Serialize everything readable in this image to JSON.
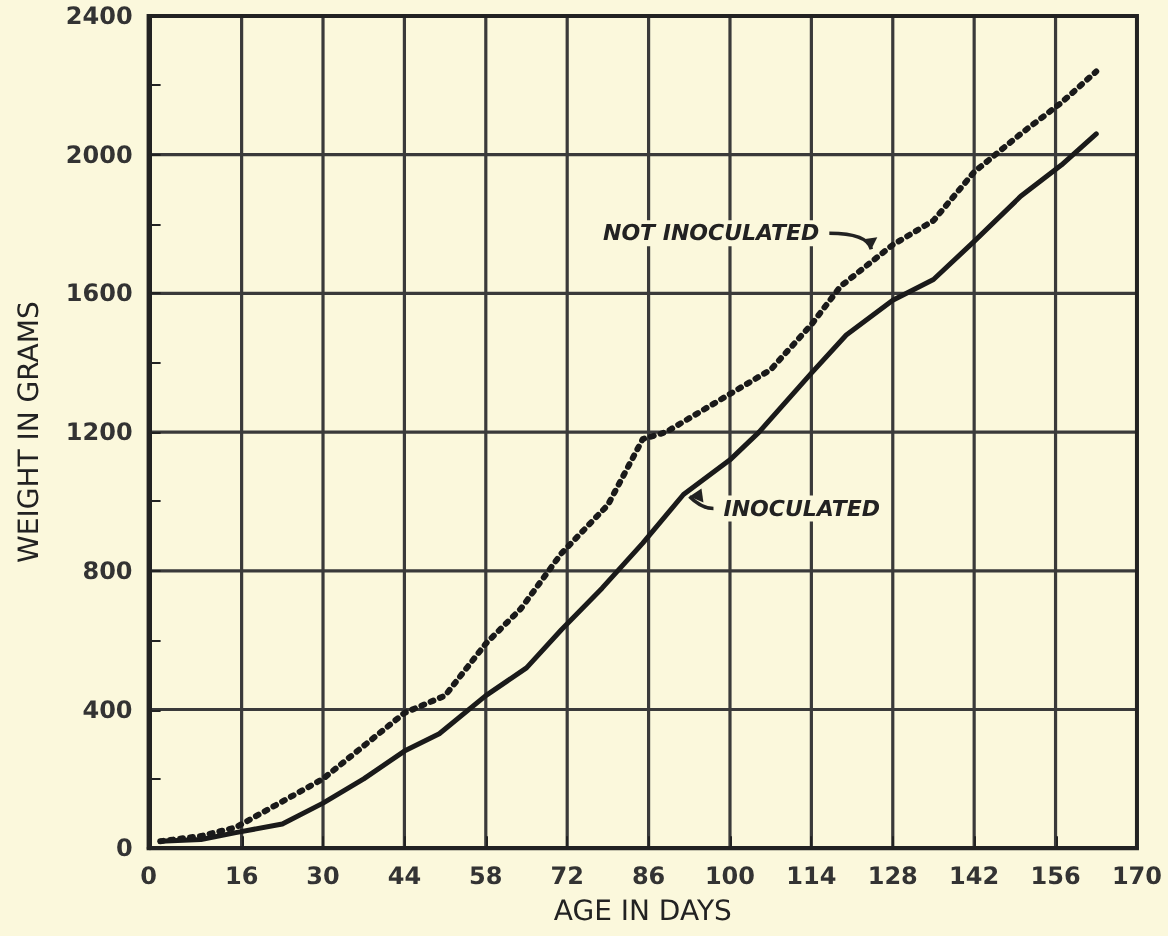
{
  "chart_data": {
    "type": "line",
    "xlabel": "AGE IN DAYS",
    "ylabel": "WEIGHT IN GRAMS",
    "xlim": [
      0,
      170
    ],
    "xticks": [
      0,
      16,
      30,
      44,
      58,
      72,
      86,
      100,
      114,
      128,
      142,
      156,
      170
    ],
    "ylim": [
      0,
      2400
    ],
    "yticks": [
      0,
      {
        "value": 200,
        "label": null
      },
      400,
      {
        "value": 600,
        "label": null
      },
      800,
      {
        "value": 1000,
        "label": null
      },
      1200,
      {
        "value": 1400,
        "label": null
      },
      1600,
      {
        "value": 1800,
        "label": null
      },
      2000,
      {
        "value": 2200,
        "label": null
      },
      2400
    ],
    "grid": true,
    "marker": "none",
    "series": [
      {
        "color": "#1a1a1a",
        "line_style": "solid",
        "x": [
          2,
          9,
          15,
          23,
          30,
          37,
          44,
          50,
          58,
          65,
          71,
          78,
          85,
          92,
          100,
          105,
          114,
          120,
          128,
          135,
          142,
          150,
          157,
          163
        ],
        "values": [
          20,
          25,
          45,
          70,
          130,
          200,
          280,
          330,
          440,
          520,
          630,
          750,
          880,
          1020,
          1120,
          1200,
          1370,
          1480,
          1580,
          1640,
          1750,
          1880,
          1970,
          2060
        ]
      },
      {
        "color": "#1a1a1a",
        "line_style": "dotted",
        "x": [
          2,
          9,
          15,
          30,
          44,
          51,
          58,
          64,
          71,
          79,
          85,
          89,
          100,
          107,
          114,
          119,
          128,
          135,
          142,
          150,
          157,
          163
        ],
        "values": [
          20,
          35,
          60,
          200,
          390,
          440,
          590,
          690,
          850,
          990,
          1180,
          1200,
          1310,
          1380,
          1510,
          1620,
          1740,
          1810,
          1950,
          2060,
          2150,
          2240
        ]
      }
    ],
    "annotations": [
      {
        "text": "NOT INOCULATED",
        "x": 125,
        "y": 1710
      },
      {
        "text": "INOCULATED",
        "x": 92,
        "y": 1020
      }
    ]
  }
}
